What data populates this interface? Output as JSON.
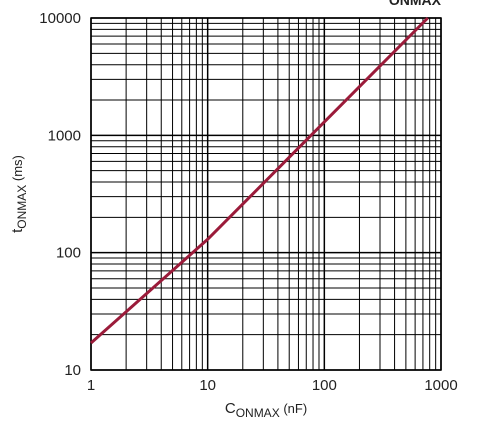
{
  "chart_data": {
    "type": "line",
    "title": "ONMAX",
    "x_label": {
      "main": "C",
      "sub": "ONMAX",
      "unit": " (nF)"
    },
    "y_label": {
      "main": "t",
      "sub": "ONMAX",
      "unit": " (ms)"
    },
    "x": [
      1,
      10,
      100,
      770
    ],
    "series": [
      {
        "name": "tONMAX",
        "color": "#9b1b3a",
        "values": [
          17,
          130,
          1300,
          10000
        ]
      }
    ],
    "log_x": true,
    "log_y": true,
    "xlim": [
      1,
      1000
    ],
    "ylim": [
      10,
      10000
    ],
    "xticks": [
      1,
      10,
      100,
      1000
    ],
    "yticks": [
      10,
      100,
      1000,
      10000
    ],
    "xminor": [
      2,
      3,
      4,
      5,
      6,
      7,
      8,
      9,
      20,
      30,
      40,
      50,
      60,
      70,
      80,
      90,
      200,
      300,
      400,
      500,
      600,
      700,
      800,
      900
    ],
    "yminor": [
      20,
      30,
      40,
      50,
      60,
      70,
      80,
      90,
      200,
      300,
      400,
      500,
      600,
      700,
      800,
      900,
      2000,
      3000,
      4000,
      5000,
      6000,
      7000,
      8000,
      9000
    ],
    "grid": true
  }
}
